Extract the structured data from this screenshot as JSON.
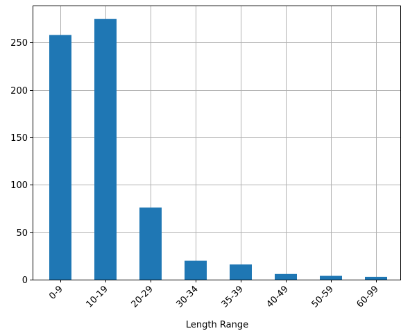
{
  "chart_data": {
    "type": "bar",
    "title": "",
    "xlabel": "Length Range",
    "ylabel": "",
    "categories": [
      "0-9",
      "10-19",
      "20-29",
      "30-34",
      "35-39",
      "40-49",
      "50-59",
      "60-99"
    ],
    "values": [
      258,
      275,
      76,
      20,
      16,
      6,
      4,
      3
    ],
    "ylim": [
      0,
      289
    ],
    "yticks": [
      0,
      50,
      100,
      150,
      200,
      250
    ],
    "grid": true,
    "x_tick_rotation_deg": 45,
    "bar_color": "#1f77b4",
    "grid_color": "#b0b0b0"
  }
}
